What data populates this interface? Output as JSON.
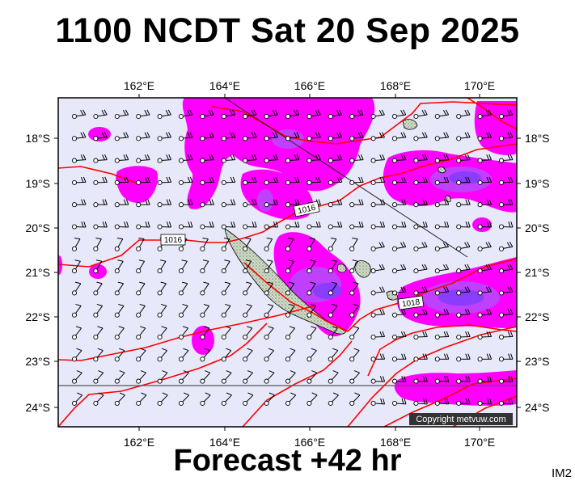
{
  "header": {
    "title": "1100 NCDT Sat 20 Sep 2025"
  },
  "footer": {
    "subtitle": "Forecast +42 hr",
    "image_id": "IM2"
  },
  "map": {
    "longitude_ticks": [
      "162°E",
      "164°E",
      "166°E",
      "168°E",
      "170°E"
    ],
    "latitude_ticks": [
      "18°S",
      "19°S",
      "20°S",
      "21°S",
      "22°S",
      "23°S",
      "24°S"
    ],
    "isobar_labels": [
      "1016",
      "1016",
      "1018"
    ],
    "copyright": "Copyright metvuw.com",
    "colors": {
      "background": "#e8e8fb",
      "precip_light": "#ff00ff",
      "precip_medium": "#c040ff",
      "precip_heavy": "#8a3cff",
      "isobar": "#ff0000",
      "land": "#c8d8c0"
    }
  }
}
